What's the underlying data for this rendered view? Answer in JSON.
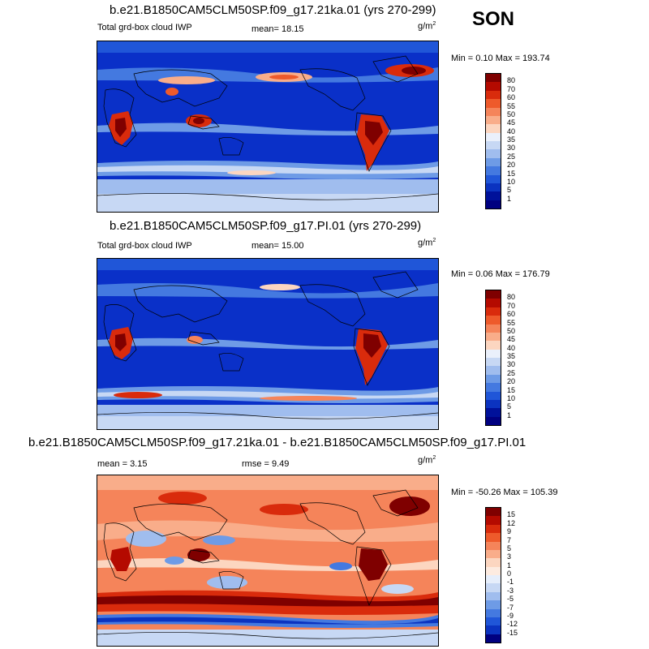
{
  "season": "SON",
  "units": "g/m",
  "units_exp": "2",
  "panels": [
    {
      "title": "b.e21.B1850CAM5CLM50SP.f09_g17.21ka.01 (yrs 270-299)",
      "subtitle": "Total grd-box cloud IWP",
      "mean_label": "mean=",
      "mean": "18.15",
      "minmax": "Min =   0.10 Max = 193.74",
      "levels": [
        "80",
        "70",
        "60",
        "55",
        "50",
        "45",
        "40",
        "35",
        "30",
        "25",
        "20",
        "15",
        "10",
        "5",
        "1"
      ],
      "colors": [
        "#7f0000",
        "#b40a00",
        "#d92b0c",
        "#ee5a2b",
        "#f5845a",
        "#f9ad8a",
        "#fcd6c0",
        "#eaf0fb",
        "#c7d8f4",
        "#a0bdee",
        "#6e9be6",
        "#4479e0",
        "#2056d8",
        "#0b33c0",
        "#00119a",
        "#000080"
      ],
      "bg": "#0a30c8"
    },
    {
      "title": "b.e21.B1850CAM5CLM50SP.f09_g17.PI.01 (yrs 270-299)",
      "subtitle": "Total grd-box cloud IWP",
      "mean_label": "mean=",
      "mean": "15.00",
      "minmax": "Min =   0.06 Max = 176.79",
      "levels": [
        "80",
        "70",
        "60",
        "55",
        "50",
        "45",
        "40",
        "35",
        "30",
        "25",
        "20",
        "15",
        "10",
        "5",
        "1"
      ],
      "colors": [
        "#7f0000",
        "#b40a00",
        "#d92b0c",
        "#ee5a2b",
        "#f5845a",
        "#f9ad8a",
        "#fcd6c0",
        "#eaf0fb",
        "#c7d8f4",
        "#a0bdee",
        "#6e9be6",
        "#4479e0",
        "#2056d8",
        "#0b33c0",
        "#00119a",
        "#000080"
      ],
      "bg": "#0a30c8"
    },
    {
      "title": "b.e21.B1850CAM5CLM50SP.f09_g17.21ka.01 - b.e21.B1850CAM5CLM50SP.f09_g17.PI.01",
      "mean_label": "mean =",
      "mean": "3.15",
      "rmse_label": "rmse =",
      "rmse": "9.49",
      "minmax": "Min = -50.26 Max = 105.39",
      "levels": [
        "15",
        "12",
        "9",
        "7",
        "5",
        "3",
        "1",
        "0",
        "-1",
        "-3",
        "-5",
        "-7",
        "-9",
        "-12",
        "-15"
      ],
      "colors": [
        "#7f0000",
        "#b40a00",
        "#d92b0c",
        "#ee5a2b",
        "#f5845a",
        "#f9ad8a",
        "#fcd6c0",
        "#fdebe0",
        "#e6eefb",
        "#c7d8f4",
        "#a0bdee",
        "#6e9be6",
        "#4479e0",
        "#2056d8",
        "#0b33c0",
        "#000080"
      ],
      "bg": "#f3a080"
    }
  ]
}
